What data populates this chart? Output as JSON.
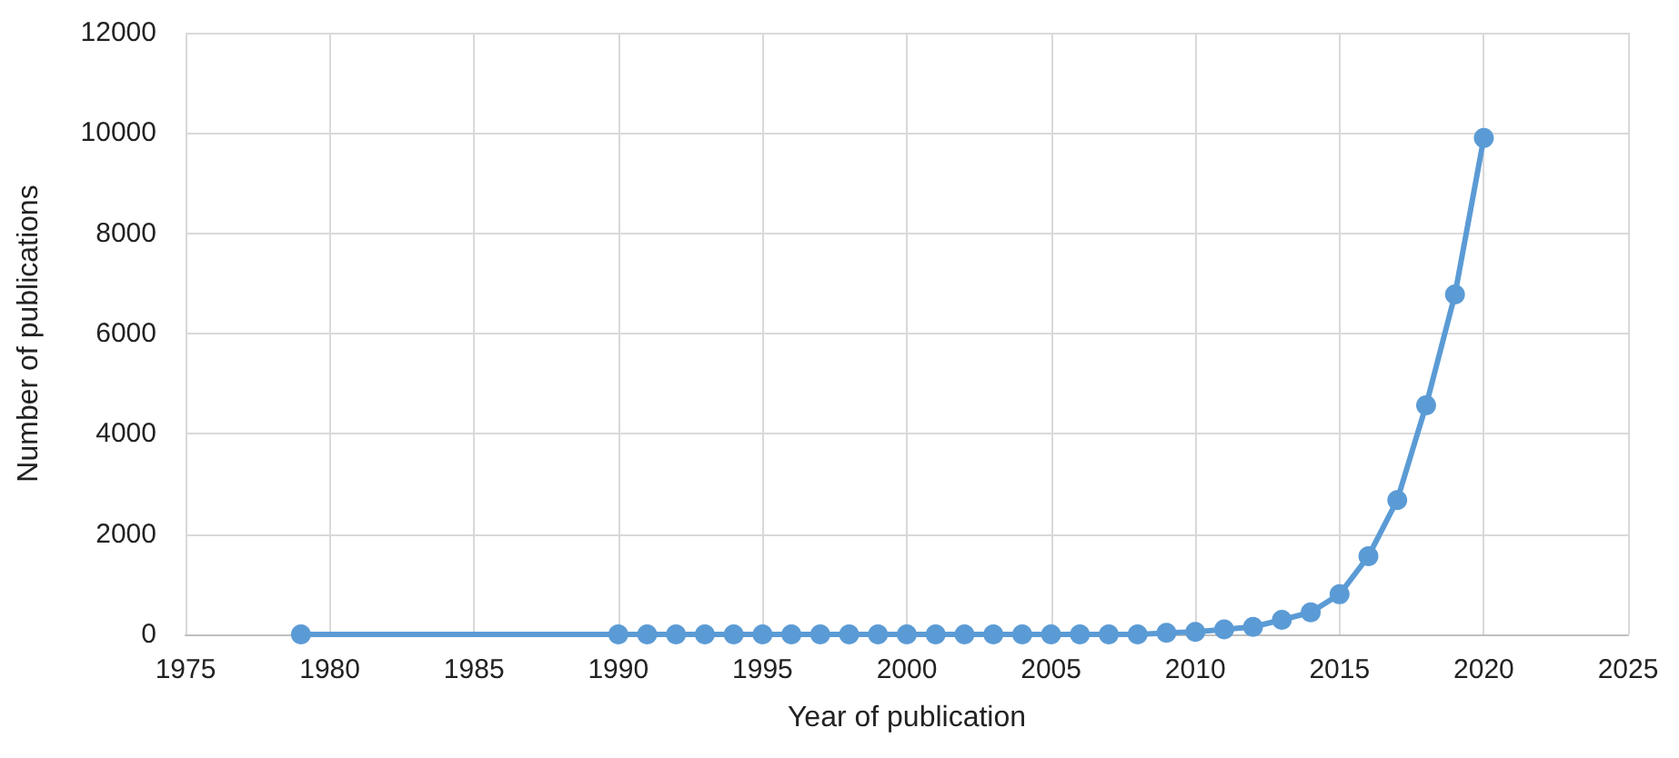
{
  "chart_data": {
    "type": "line",
    "xlabel": "Year of publication",
    "ylabel": "Number of publications",
    "x": [
      1979,
      1990,
      1991,
      1992,
      1993,
      1994,
      1995,
      1996,
      1997,
      1998,
      1999,
      2000,
      2001,
      2002,
      2003,
      2004,
      2005,
      2006,
      2007,
      2008,
      2009,
      2010,
      2011,
      2012,
      2013,
      2014,
      2015,
      2016,
      2017,
      2018,
      2019,
      2020
    ],
    "series": [
      {
        "color": "#5b9bd5",
        "values": [
          0,
          0,
          0,
          0,
          0,
          0,
          0,
          0,
          0,
          0,
          0,
          0,
          0,
          0,
          0,
          0,
          0,
          0,
          0,
          0,
          30,
          50,
          100,
          150,
          290,
          440,
          800,
          1560,
          2680,
          4570,
          6780,
          9900
        ]
      }
    ],
    "xlim": [
      1975,
      2025
    ],
    "xticks": [
      1975,
      1980,
      1985,
      1990,
      1995,
      2000,
      2005,
      2010,
      2015,
      2020,
      2025
    ],
    "ylim": [
      0,
      12000
    ],
    "yticks": [
      0,
      2000,
      4000,
      6000,
      8000,
      10000,
      12000
    ],
    "grid": true,
    "marker": "circle",
    "line_style": "solid"
  }
}
